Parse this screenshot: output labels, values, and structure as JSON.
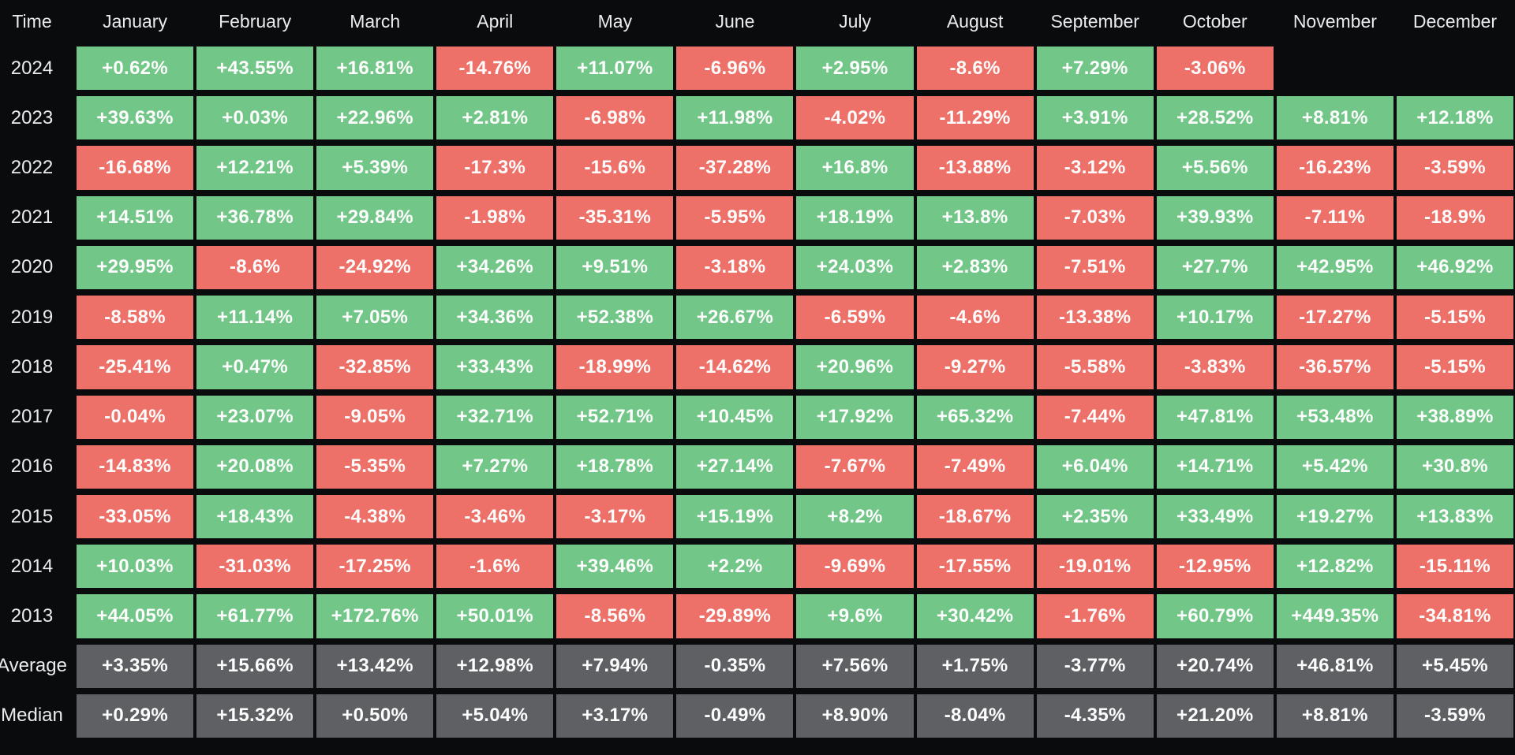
{
  "chart_data": {
    "type": "heatmap",
    "columns": [
      "Time",
      "January",
      "February",
      "March",
      "April",
      "May",
      "June",
      "July",
      "August",
      "September",
      "October",
      "November",
      "December"
    ],
    "rows": [
      {
        "label": "2024",
        "type": "year",
        "values": [
          "+0.62%",
          "+43.55%",
          "+16.81%",
          "-14.76%",
          "+11.07%",
          "-6.96%",
          "+2.95%",
          "-8.6%",
          "+7.29%",
          "-3.06%",
          "",
          ""
        ]
      },
      {
        "label": "2023",
        "type": "year",
        "values": [
          "+39.63%",
          "+0.03%",
          "+22.96%",
          "+2.81%",
          "-6.98%",
          "+11.98%",
          "-4.02%",
          "-11.29%",
          "+3.91%",
          "+28.52%",
          "+8.81%",
          "+12.18%"
        ]
      },
      {
        "label": "2022",
        "type": "year",
        "values": [
          "-16.68%",
          "+12.21%",
          "+5.39%",
          "-17.3%",
          "-15.6%",
          "-37.28%",
          "+16.8%",
          "-13.88%",
          "-3.12%",
          "+5.56%",
          "-16.23%",
          "-3.59%"
        ]
      },
      {
        "label": "2021",
        "type": "year",
        "values": [
          "+14.51%",
          "+36.78%",
          "+29.84%",
          "-1.98%",
          "-35.31%",
          "-5.95%",
          "+18.19%",
          "+13.8%",
          "-7.03%",
          "+39.93%",
          "-7.11%",
          "-18.9%"
        ]
      },
      {
        "label": "2020",
        "type": "year",
        "values": [
          "+29.95%",
          "-8.6%",
          "-24.92%",
          "+34.26%",
          "+9.51%",
          "-3.18%",
          "+24.03%",
          "+2.83%",
          "-7.51%",
          "+27.7%",
          "+42.95%",
          "+46.92%"
        ]
      },
      {
        "label": "2019",
        "type": "year",
        "values": [
          "-8.58%",
          "+11.14%",
          "+7.05%",
          "+34.36%",
          "+52.38%",
          "+26.67%",
          "-6.59%",
          "-4.6%",
          "-13.38%",
          "+10.17%",
          "-17.27%",
          "-5.15%"
        ]
      },
      {
        "label": "2018",
        "type": "year",
        "values": [
          "-25.41%",
          "+0.47%",
          "-32.85%",
          "+33.43%",
          "-18.99%",
          "-14.62%",
          "+20.96%",
          "-9.27%",
          "-5.58%",
          "-3.83%",
          "-36.57%",
          "-5.15%"
        ]
      },
      {
        "label": "2017",
        "type": "year",
        "values": [
          "-0.04%",
          "+23.07%",
          "-9.05%",
          "+32.71%",
          "+52.71%",
          "+10.45%",
          "+17.92%",
          "+65.32%",
          "-7.44%",
          "+47.81%",
          "+53.48%",
          "+38.89%"
        ]
      },
      {
        "label": "2016",
        "type": "year",
        "values": [
          "-14.83%",
          "+20.08%",
          "-5.35%",
          "+7.27%",
          "+18.78%",
          "+27.14%",
          "-7.67%",
          "-7.49%",
          "+6.04%",
          "+14.71%",
          "+5.42%",
          "+30.8%"
        ]
      },
      {
        "label": "2015",
        "type": "year",
        "values": [
          "-33.05%",
          "+18.43%",
          "-4.38%",
          "-3.46%",
          "-3.17%",
          "+15.19%",
          "+8.2%",
          "-18.67%",
          "+2.35%",
          "+33.49%",
          "+19.27%",
          "+13.83%"
        ]
      },
      {
        "label": "2014",
        "type": "year",
        "values": [
          "+10.03%",
          "-31.03%",
          "-17.25%",
          "-1.6%",
          "+39.46%",
          "+2.2%",
          "-9.69%",
          "-17.55%",
          "-19.01%",
          "-12.95%",
          "+12.82%",
          "-15.11%"
        ]
      },
      {
        "label": "2013",
        "type": "year",
        "values": [
          "+44.05%",
          "+61.77%",
          "+172.76%",
          "+50.01%",
          "-8.56%",
          "-29.89%",
          "+9.6%",
          "+30.42%",
          "-1.76%",
          "+60.79%",
          "+449.35%",
          "-34.81%"
        ]
      },
      {
        "label": "Average",
        "type": "summary",
        "values": [
          "+3.35%",
          "+15.66%",
          "+13.42%",
          "+12.98%",
          "+7.94%",
          "-0.35%",
          "+7.56%",
          "+1.75%",
          "-3.77%",
          "+20.74%",
          "+46.81%",
          "+5.45%"
        ]
      },
      {
        "label": "Median",
        "type": "summary",
        "values": [
          "+0.29%",
          "+15.32%",
          "+0.50%",
          "+5.04%",
          "+3.17%",
          "-0.49%",
          "+8.90%",
          "-8.04%",
          "-4.35%",
          "+21.20%",
          "+8.81%",
          "-3.59%"
        ]
      }
    ],
    "colors": {
      "positive": "#72c688",
      "negative": "#ed7168",
      "summary": "#5e6063",
      "background": "#0a0b0d",
      "value_text": "#fdfdfd",
      "label_text": "#e9ebee"
    },
    "legend_position": "none",
    "grid": false
  }
}
